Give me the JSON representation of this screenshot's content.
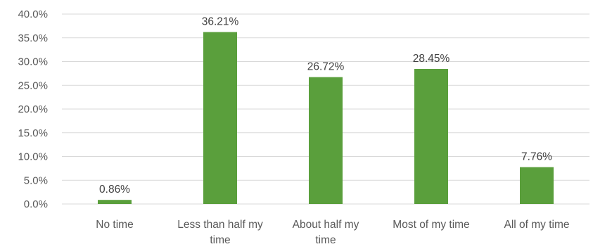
{
  "chart_data": {
    "type": "bar",
    "categories": [
      [
        "No time"
      ],
      [
        "Less than half my",
        "time"
      ],
      [
        "About half my",
        "time"
      ],
      [
        "Most of my time"
      ],
      [
        "All of my time"
      ]
    ],
    "values": [
      0.86,
      36.21,
      26.72,
      28.45,
      7.76
    ],
    "data_labels": [
      "0.86%",
      "36.21%",
      "26.72%",
      "28.45%",
      "7.76%"
    ],
    "yticks": [
      "0.0%",
      "5.0%",
      "10.0%",
      "15.0%",
      "20.0%",
      "25.0%",
      "30.0%",
      "35.0%",
      "40.0%"
    ],
    "ylim": [
      0,
      40
    ],
    "grid": true,
    "legend": "none",
    "bar_color": "#5a9f3c",
    "title": "",
    "xlabel": "",
    "ylabel": ""
  }
}
